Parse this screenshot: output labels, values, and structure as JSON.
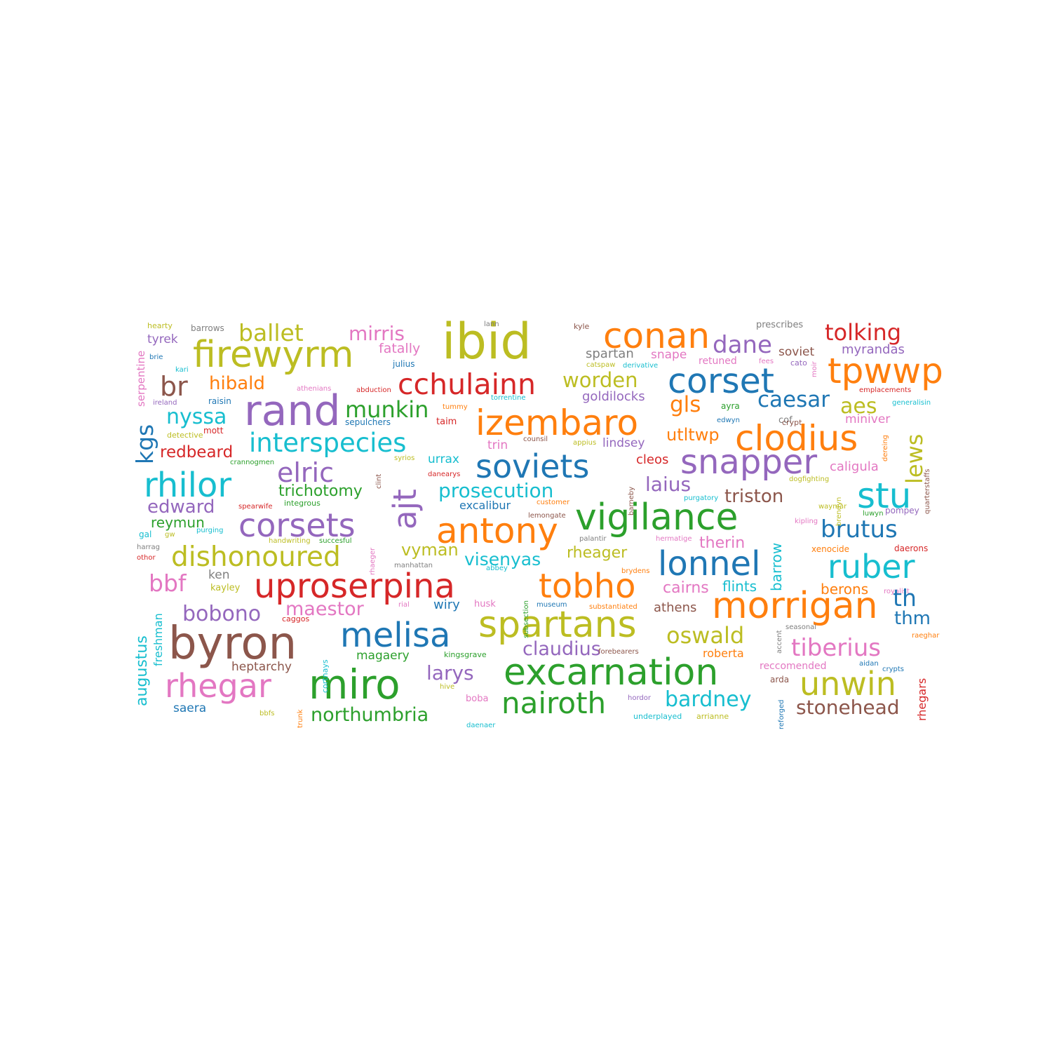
{
  "palette": {
    "blue": "#1f77b4",
    "orange": "#ff7f0e",
    "green": "#2ca02c",
    "red": "#d62728",
    "purple": "#9467bd",
    "brown": "#8c564b",
    "pink": "#e377c2",
    "gray": "#7f7f7f",
    "olive": "#bcbd22",
    "cyan": "#17becf"
  },
  "words": [
    {
      "text": "hearty",
      "color": "olive"
    },
    {
      "text": "barrows",
      "color": "gray"
    },
    {
      "text": "ibid",
      "color": "olive"
    },
    {
      "text": "lann",
      "color": "gray"
    },
    {
      "text": "kyle",
      "color": "brown"
    },
    {
      "text": "conan",
      "color": "orange"
    },
    {
      "text": "prescribes",
      "color": "gray"
    },
    {
      "text": "tolking",
      "color": "red"
    },
    {
      "text": "tyrek",
      "color": "purple"
    },
    {
      "text": "ballet",
      "color": "olive"
    },
    {
      "text": "mirris",
      "color": "pink"
    },
    {
      "text": "fatally",
      "color": "pink"
    },
    {
      "text": "firewyrm",
      "color": "olive"
    },
    {
      "text": "dane",
      "color": "purple"
    },
    {
      "text": "myrandas",
      "color": "purple"
    },
    {
      "text": "soviet",
      "color": "brown"
    },
    {
      "text": "spartan",
      "color": "gray"
    },
    {
      "text": "snape",
      "color": "pink"
    },
    {
      "text": "brie",
      "color": "blue"
    },
    {
      "text": "julius",
      "color": "blue"
    },
    {
      "text": "catspaw",
      "color": "olive"
    },
    {
      "text": "derivative",
      "color": "cyan"
    },
    {
      "text": "retuned",
      "color": "pink"
    },
    {
      "text": "fees",
      "color": "pink"
    },
    {
      "text": "cato",
      "color": "purple"
    },
    {
      "text": "tpwwp",
      "color": "orange"
    },
    {
      "text": "kari",
      "color": "cyan"
    },
    {
      "text": "corset",
      "color": "blue"
    },
    {
      "text": "cchulainn",
      "color": "red"
    },
    {
      "text": "br",
      "color": "brown"
    },
    {
      "text": "hibald",
      "color": "orange"
    },
    {
      "text": "worden",
      "color": "olive"
    },
    {
      "text": "emplacements",
      "color": "red"
    },
    {
      "text": "athenians",
      "color": "pink"
    },
    {
      "text": "abduction",
      "color": "red"
    },
    {
      "text": "torrentine",
      "color": "cyan"
    },
    {
      "text": "goldilocks",
      "color": "purple"
    },
    {
      "text": "caesar",
      "color": "blue"
    },
    {
      "text": "ireland",
      "color": "purple"
    },
    {
      "text": "raisin",
      "color": "blue"
    },
    {
      "text": "rand",
      "color": "purple"
    },
    {
      "text": "tummy",
      "color": "orange"
    },
    {
      "text": "gls",
      "color": "orange"
    },
    {
      "text": "ayra",
      "color": "green"
    },
    {
      "text": "aes",
      "color": "olive"
    },
    {
      "text": "generalisin",
      "color": "cyan"
    },
    {
      "text": "munkin",
      "color": "green"
    },
    {
      "text": "cof",
      "color": "gray"
    },
    {
      "text": "nyssa",
      "color": "cyan"
    },
    {
      "text": "izembaro",
      "color": "orange"
    },
    {
      "text": "sepulchers",
      "color": "blue"
    },
    {
      "text": "taim",
      "color": "red"
    },
    {
      "text": "edwyn",
      "color": "blue"
    },
    {
      "text": "crypt",
      "color": "brown"
    },
    {
      "text": "miniver",
      "color": "pink"
    },
    {
      "text": "mott",
      "color": "red"
    },
    {
      "text": "detective",
      "color": "olive"
    },
    {
      "text": "utltwp",
      "color": "orange"
    },
    {
      "text": "clodius",
      "color": "orange"
    },
    {
      "text": "interspecies",
      "color": "cyan"
    },
    {
      "text": "trin",
      "color": "pink"
    },
    {
      "text": "counsil",
      "color": "brown"
    },
    {
      "text": "appius",
      "color": "olive"
    },
    {
      "text": "lindsey",
      "color": "purple"
    },
    {
      "text": "redbeard",
      "color": "red"
    },
    {
      "text": "syrios",
      "color": "olive"
    },
    {
      "text": "urrax",
      "color": "cyan"
    },
    {
      "text": "cleos",
      "color": "red"
    },
    {
      "text": "crannogmen",
      "color": "green"
    },
    {
      "text": "soviets",
      "color": "blue"
    },
    {
      "text": "snapper",
      "color": "purple"
    },
    {
      "text": "caligula",
      "color": "pink"
    },
    {
      "text": "elric",
      "color": "purple"
    },
    {
      "text": "rhilor",
      "color": "cyan"
    },
    {
      "text": "danearys",
      "color": "red"
    },
    {
      "text": "laius",
      "color": "purple"
    },
    {
      "text": "dogfighting",
      "color": "olive"
    },
    {
      "text": "trichotomy",
      "color": "green"
    },
    {
      "text": "prosecution",
      "color": "cyan"
    },
    {
      "text": "integrous",
      "color": "green"
    },
    {
      "text": "triston",
      "color": "brown"
    },
    {
      "text": "stu",
      "color": "cyan"
    },
    {
      "text": "edward",
      "color": "purple"
    },
    {
      "text": "spearwife",
      "color": "red"
    },
    {
      "text": "excalibur",
      "color": "blue"
    },
    {
      "text": "customer",
      "color": "orange"
    },
    {
      "text": "purgatory",
      "color": "cyan"
    },
    {
      "text": "waymar",
      "color": "olive"
    },
    {
      "text": "reymun",
      "color": "green"
    },
    {
      "text": "lemongate",
      "color": "brown"
    },
    {
      "text": "corsets",
      "color": "purple"
    },
    {
      "text": "vigilance",
      "color": "green"
    },
    {
      "text": "antony",
      "color": "orange"
    },
    {
      "text": "brutus",
      "color": "blue"
    },
    {
      "text": "kipling",
      "color": "pink"
    },
    {
      "text": "gal",
      "color": "cyan"
    },
    {
      "text": "gw",
      "color": "olive"
    },
    {
      "text": "purging",
      "color": "cyan"
    },
    {
      "text": "palantir",
      "color": "gray"
    },
    {
      "text": "hermatige",
      "color": "pink"
    },
    {
      "text": "therin",
      "color": "pink"
    },
    {
      "text": "handwriting",
      "color": "olive"
    },
    {
      "text": "succesful",
      "color": "green"
    },
    {
      "text": "harrag",
      "color": "gray"
    },
    {
      "text": "dishonoured",
      "color": "olive"
    },
    {
      "text": "vyman",
      "color": "olive"
    },
    {
      "text": "rheager",
      "color": "olive"
    },
    {
      "text": "xenocide",
      "color": "orange"
    },
    {
      "text": "daerons",
      "color": "red"
    },
    {
      "text": "othor",
      "color": "red"
    },
    {
      "text": "visenyas",
      "color": "cyan"
    },
    {
      "text": "lonnel",
      "color": "blue"
    },
    {
      "text": "ruber",
      "color": "cyan"
    },
    {
      "text": "manhattan",
      "color": "gray"
    },
    {
      "text": "abbey",
      "color": "cyan"
    },
    {
      "text": "brydens",
      "color": "orange"
    },
    {
      "text": "bbf",
      "color": "pink"
    },
    {
      "text": "ken",
      "color": "gray"
    },
    {
      "text": "uproserpina",
      "color": "red"
    },
    {
      "text": "tobho",
      "color": "orange"
    },
    {
      "text": "cairns",
      "color": "pink"
    },
    {
      "text": "flints",
      "color": "cyan"
    },
    {
      "text": "berons",
      "color": "orange"
    },
    {
      "text": "kayley",
      "color": "olive"
    },
    {
      "text": "royalist",
      "color": "pink"
    },
    {
      "text": "maestor",
      "color": "pink"
    },
    {
      "text": "rial",
      "color": "pink"
    },
    {
      "text": "wiry",
      "color": "blue"
    },
    {
      "text": "husk",
      "color": "pink"
    },
    {
      "text": "museum",
      "color": "blue"
    },
    {
      "text": "substantiated",
      "color": "orange"
    },
    {
      "text": "athens",
      "color": "brown"
    },
    {
      "text": "morrigan",
      "color": "orange"
    },
    {
      "text": "th",
      "color": "blue"
    },
    {
      "text": "bobono",
      "color": "purple"
    },
    {
      "text": "caggos",
      "color": "red"
    },
    {
      "text": "spartans",
      "color": "olive"
    },
    {
      "text": "thm",
      "color": "blue"
    },
    {
      "text": "byron",
      "color": "brown"
    },
    {
      "text": "melisa",
      "color": "blue"
    },
    {
      "text": "seasonal",
      "color": "gray"
    },
    {
      "text": "oswald",
      "color": "olive"
    },
    {
      "text": "raeghar",
      "color": "orange"
    },
    {
      "text": "claudius",
      "color": "purple"
    },
    {
      "text": "tiberius",
      "color": "pink"
    },
    {
      "text": "magaery",
      "color": "green"
    },
    {
      "text": "kingsgrave",
      "color": "green"
    },
    {
      "text": "forebearers",
      "color": "brown"
    },
    {
      "text": "roberta",
      "color": "orange"
    },
    {
      "text": "aidan",
      "color": "blue"
    },
    {
      "text": "heptarchy",
      "color": "brown"
    },
    {
      "text": "excarnation",
      "color": "green"
    },
    {
      "text": "reccomended",
      "color": "pink"
    },
    {
      "text": "crypts",
      "color": "blue"
    },
    {
      "text": "rhegar",
      "color": "pink"
    },
    {
      "text": "miro",
      "color": "green"
    },
    {
      "text": "larys",
      "color": "purple"
    },
    {
      "text": "unwin",
      "color": "olive"
    },
    {
      "text": "hive",
      "color": "olive"
    },
    {
      "text": "arda",
      "color": "brown"
    },
    {
      "text": "boba",
      "color": "pink"
    },
    {
      "text": "nairoth",
      "color": "green"
    },
    {
      "text": "hordor",
      "color": "purple"
    },
    {
      "text": "bardney",
      "color": "cyan"
    },
    {
      "text": "saera",
      "color": "blue"
    },
    {
      "text": "northumbria",
      "color": "green"
    },
    {
      "text": "daenaer",
      "color": "cyan"
    },
    {
      "text": "stonehead",
      "color": "brown"
    },
    {
      "text": "bbfs",
      "color": "olive"
    },
    {
      "text": "underplayed",
      "color": "cyan"
    },
    {
      "text": "arrianne",
      "color": "olive"
    },
    {
      "text": "serpentine",
      "color": "pink"
    },
    {
      "text": "kgs",
      "color": "blue"
    },
    {
      "text": "ajt",
      "color": "purple"
    },
    {
      "text": "lews",
      "color": "olive"
    },
    {
      "text": "quarterstaffs",
      "color": "brown"
    },
    {
      "text": "brendyn",
      "color": "olive"
    },
    {
      "text": "barneby",
      "color": "brown"
    },
    {
      "text": "clint",
      "color": "brown"
    },
    {
      "text": "barrow",
      "color": "cyan"
    },
    {
      "text": "rhaeger",
      "color": "pink"
    },
    {
      "text": "augustus",
      "color": "cyan"
    },
    {
      "text": "freshman",
      "color": "cyan"
    },
    {
      "text": "cortnays",
      "color": "cyan"
    },
    {
      "text": "subsection",
      "color": "green"
    },
    {
      "text": "accent",
      "color": "gray"
    },
    {
      "text": "reforged",
      "color": "blue"
    },
    {
      "text": "rhegars",
      "color": "red"
    },
    {
      "text": "trunk",
      "color": "orange"
    },
    {
      "text": "moir",
      "color": "pink"
    },
    {
      "text": "luwyn",
      "color": "green"
    },
    {
      "text": "pompey",
      "color": "purple"
    },
    {
      "text": "dereing",
      "color": "orange"
    }
  ]
}
